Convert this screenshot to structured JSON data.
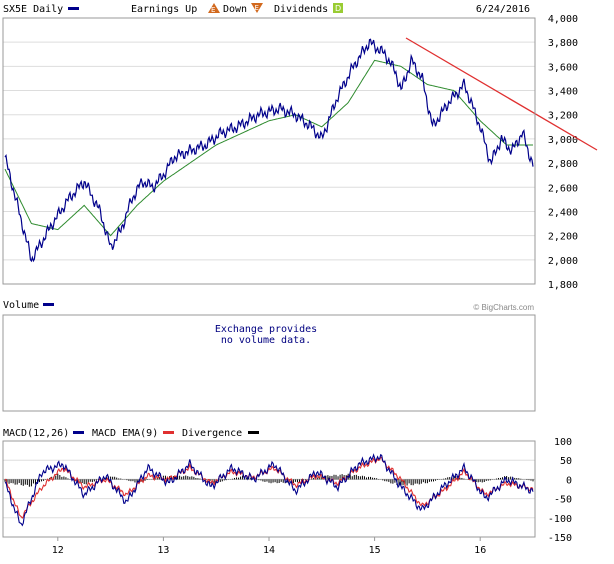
{
  "header": {
    "symbol_label": "SX5E Daily",
    "earnings_label": "Earnings Up",
    "up_glyph": "E",
    "down_label": "Down",
    "down_glyph": "E",
    "dividends_label": "Dividends",
    "dividend_glyph": "D",
    "date": "6/24/2016"
  },
  "volume": {
    "label": "Volume",
    "message_line1": "Exchange provides",
    "message_line2": "no volume data."
  },
  "watermark": "© BigCharts.com",
  "macd": {
    "label_macd": "MACD(12,26)",
    "label_ema": "MACD EMA(9)",
    "label_div": "Divergence"
  },
  "colors": {
    "price": "#00008b",
    "ma": "#2e8b2e",
    "trendline": "#e03030",
    "ema": "#e03030",
    "divergence": "#000000",
    "grid": "#dddddd",
    "earnings_up": "#d2691e",
    "dividend": "#99cc33"
  },
  "chart_data": [
    {
      "type": "line",
      "title": "SX5E Daily",
      "x_tick_labels": [
        "12",
        "13",
        "14",
        "15",
        "16"
      ],
      "y_tick_labels": [
        "1,800",
        "2,000",
        "2,200",
        "2,400",
        "2,600",
        "2,800",
        "3,000",
        "3,200",
        "3,400",
        "3,600",
        "3,800",
        "4,000"
      ],
      "ylim": [
        1800,
        4000
      ],
      "series": [
        {
          "name": "SX5E",
          "x": [
            0,
            0.05,
            0.09,
            0.12,
            0.15,
            0.18,
            0.2,
            0.22,
            0.24,
            0.26,
            0.28,
            0.3,
            0.32,
            0.35,
            0.38,
            0.41,
            0.44,
            0.48,
            0.52,
            0.55,
            0.58,
            0.6,
            0.63,
            0.66,
            0.69,
            0.72,
            0.74,
            0.75,
            0.77,
            0.79,
            0.81,
            0.84,
            0.87,
            0.9,
            0.92,
            0.94,
            0.96,
            0.98,
            1.0
          ],
          "values": [
            2850,
            2000,
            2300,
            2500,
            2650,
            2400,
            2100,
            2250,
            2500,
            2650,
            2600,
            2700,
            2850,
            2900,
            2950,
            3050,
            3100,
            3200,
            3250,
            3200,
            3100,
            3000,
            3350,
            3600,
            3800,
            3700,
            3550,
            3400,
            3650,
            3500,
            3100,
            3300,
            3450,
            3100,
            2800,
            3000,
            2900,
            3050,
            2780
          ]
        },
        {
          "name": "Moving Average",
          "x": [
            0,
            0.05,
            0.1,
            0.15,
            0.2,
            0.25,
            0.3,
            0.35,
            0.4,
            0.45,
            0.5,
            0.55,
            0.6,
            0.65,
            0.7,
            0.75,
            0.8,
            0.85,
            0.9,
            0.95,
            1.0
          ],
          "values": [
            2750,
            2300,
            2250,
            2450,
            2200,
            2450,
            2650,
            2800,
            2950,
            3050,
            3150,
            3200,
            3100,
            3300,
            3650,
            3600,
            3450,
            3400,
            3150,
            2950,
            2950
          ]
        }
      ],
      "annotations": [
        "trendline from the 2015 peak"
      ]
    },
    {
      "type": "line",
      "title": "MACD(12,26)",
      "x_tick_labels": [
        "12",
        "13",
        "14",
        "15",
        "16"
      ],
      "y_tick_labels": [
        "100",
        "50",
        "0",
        "-50",
        "-100",
        "-150"
      ],
      "ylim": [
        -150,
        100
      ],
      "series": [
        {
          "name": "MACD(12,26)",
          "x": [
            0,
            0.03,
            0.07,
            0.11,
            0.15,
            0.19,
            0.23,
            0.27,
            0.31,
            0.35,
            0.39,
            0.43,
            0.47,
            0.51,
            0.55,
            0.59,
            0.63,
            0.67,
            0.71,
            0.75,
            0.79,
            0.83,
            0.87,
            0.91,
            0.95,
            1.0
          ],
          "values": [
            -10,
            -120,
            20,
            40,
            -40,
            10,
            -60,
            30,
            -10,
            40,
            -20,
            30,
            0,
            40,
            -30,
            20,
            -20,
            40,
            60,
            -20,
            -80,
            -20,
            30,
            -50,
            0,
            -30
          ]
        },
        {
          "name": "MACD EMA(9)",
          "x": [
            0,
            0.03,
            0.07,
            0.11,
            0.15,
            0.19,
            0.23,
            0.27,
            0.31,
            0.35,
            0.39,
            0.43,
            0.47,
            0.51,
            0.55,
            0.59,
            0.63,
            0.67,
            0.71,
            0.75,
            0.79,
            0.83,
            0.87,
            0.91,
            0.95,
            1.0
          ],
          "values": [
            0,
            -100,
            -20,
            30,
            -20,
            0,
            -40,
            10,
            0,
            30,
            -10,
            20,
            5,
            30,
            -15,
            10,
            -10,
            30,
            55,
            0,
            -70,
            -30,
            20,
            -40,
            -10,
            -25
          ]
        },
        {
          "name": "Divergence",
          "x": [
            0,
            0.05,
            0.1,
            0.15,
            0.2,
            0.25,
            0.3,
            0.35,
            0.4,
            0.45,
            0.5,
            0.55,
            0.6,
            0.65,
            0.7,
            0.75,
            0.8,
            0.85,
            0.9,
            0.95,
            1.0
          ],
          "values": [
            -10,
            -20,
            15,
            -15,
            10,
            -10,
            10,
            10,
            -10,
            10,
            -10,
            -10,
            10,
            15,
            5,
            -20,
            -10,
            10,
            -10,
            10,
            -5
          ]
        }
      ]
    }
  ]
}
